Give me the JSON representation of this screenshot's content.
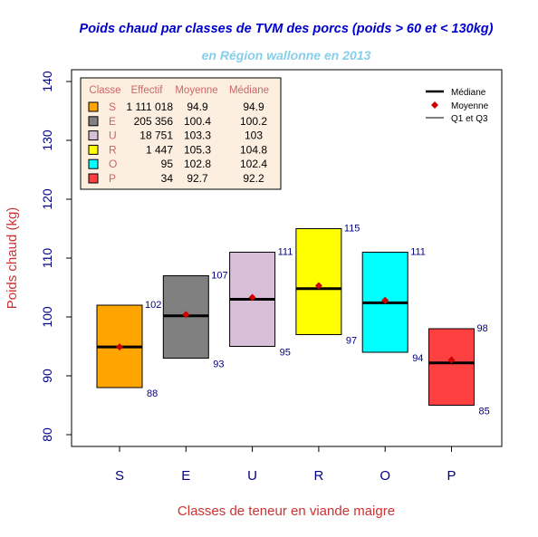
{
  "chart_data": {
    "type": "boxplot",
    "title": "Poids chaud par classes de TVM des porcs (poids > 60 et < 130kg)",
    "subtitle": "en Région wallonne en 2013",
    "xlabel": "Classes de teneur en viande maigre",
    "ylabel": "Poids chaud (kg)",
    "ylim": [
      78,
      142
    ],
    "yticks": [
      "80",
      "90",
      "100",
      "110",
      "120",
      "130",
      "140"
    ],
    "categories": [
      "S",
      "E",
      "U",
      "R",
      "O",
      "P"
    ],
    "boxes": [
      {
        "class": "S",
        "q1": 88,
        "q3": 102,
        "median": 94.9,
        "mean": 94.9,
        "color": "#FFA500",
        "q1_label": "88",
        "q3_label": "102"
      },
      {
        "class": "E",
        "q1": 93,
        "q3": 107,
        "median": 100.2,
        "mean": 100.4,
        "color": "#808080",
        "q1_label": "93",
        "q3_label": "107"
      },
      {
        "class": "U",
        "q1": 95,
        "q3": 111,
        "median": 103,
        "mean": 103.3,
        "color": "#D8BFD8",
        "q1_label": "95",
        "q3_label": "111"
      },
      {
        "class": "R",
        "q1": 97,
        "q3": 115,
        "median": 104.8,
        "mean": 105.3,
        "color": "#FFFF00",
        "q1_label": "97",
        "q3_label": "115"
      },
      {
        "class": "O",
        "q1": 94,
        "q3": 111,
        "median": 102.4,
        "mean": 102.8,
        "color": "#00FFFF",
        "q1_label": "94",
        "q3_label": "111"
      },
      {
        "class": "P",
        "q1": 85,
        "q3": 98,
        "median": 92.2,
        "mean": 92.7,
        "color": "#FF4040",
        "q1_label": "85",
        "q3_label": "98"
      }
    ],
    "table": {
      "headers": [
        "Classe",
        "Effectif",
        "Moyenne",
        "Médiane"
      ],
      "rows": [
        {
          "classe": "S",
          "effectif": "1 111 018",
          "moyenne": "94.9",
          "mediane": "94.9",
          "color": "#FFA500"
        },
        {
          "classe": "E",
          "effectif": "205 356",
          "moyenne": "100.4",
          "mediane": "100.2",
          "color": "#808080"
        },
        {
          "classe": "U",
          "effectif": "18 751",
          "moyenne": "103.3",
          "mediane": "103",
          "color": "#D8BFD8"
        },
        {
          "classe": "R",
          "effectif": "1 447",
          "moyenne": "105.3",
          "mediane": "104.8",
          "color": "#FFFF00"
        },
        {
          "classe": "O",
          "effectif": "95",
          "moyenne": "102.8",
          "mediane": "102.4",
          "color": "#00FFFF"
        },
        {
          "classe": "P",
          "effectif": "34",
          "moyenne": "92.7",
          "mediane": "92.2",
          "color": "#FF4040"
        }
      ]
    },
    "legend": {
      "placement": "top-right",
      "items": [
        {
          "label": "Médiane",
          "symbol": "thick-line"
        },
        {
          "label": "Moyenne",
          "symbol": "red-diamond"
        },
        {
          "label": "Q1 et Q3",
          "symbol": "thin-line"
        }
      ]
    },
    "colors": {
      "title": "#0000CC",
      "subtitle": "#87CEEB",
      "axis_label": "#CC3333",
      "tick_label": "#000080",
      "table_bg": "#FDEFDF",
      "table_text": "#CC6666",
      "mean_marker": "#CC0000"
    }
  }
}
